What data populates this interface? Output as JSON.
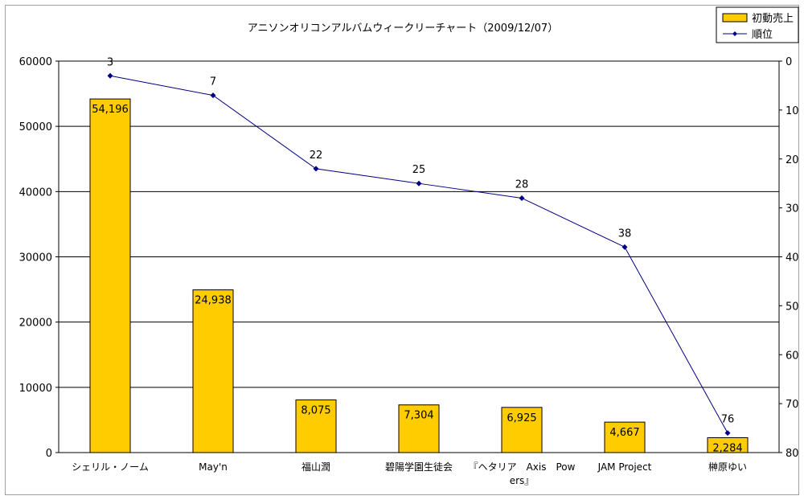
{
  "chart_data": {
    "type": "bar",
    "title": "アニソンオリコンアルバムウィークリーチャート（2009/12/07）",
    "categories": [
      "シェリル・ノーム",
      "May'n",
      "福山潤",
      "碧陽学園生徒会",
      "『ヘタリア Axis Powers』",
      "JAM Project",
      "榊原ゆい"
    ],
    "category_lines": [
      [
        "シェリル・ノーム"
      ],
      [
        "May'n"
      ],
      [
        "福山潤"
      ],
      [
        "碧陽学園生徒会"
      ],
      [
        "『ヘタリア　Axis　Pow",
        "ers』"
      ],
      [
        "JAM Project"
      ],
      [
        "榊原ゆい"
      ]
    ],
    "series": [
      {
        "name": "初動売上",
        "type": "bar",
        "axis": "left",
        "color": "#ffcc00",
        "values": [
          54196,
          24938,
          8075,
          7304,
          6925,
          4667,
          2284
        ],
        "labels": [
          "54,196",
          "24,938",
          "8,075",
          "7,304",
          "6,925",
          "4,667",
          "2,284"
        ]
      },
      {
        "name": "順位",
        "type": "line",
        "axis": "right",
        "color": "#000080",
        "values": [
          3,
          7,
          22,
          25,
          28,
          38,
          76
        ],
        "labels": [
          "3",
          "7",
          "22",
          "25",
          "28",
          "38",
          "76"
        ]
      }
    ],
    "y_left": {
      "min": 0,
      "max": 60000,
      "ticks": [
        "0",
        "10000",
        "20000",
        "30000",
        "40000",
        "50000",
        "60000"
      ]
    },
    "y_right": {
      "min": 0,
      "max": 80,
      "reversed": true,
      "ticks": [
        "0",
        "10",
        "20",
        "30",
        "40",
        "50",
        "60",
        "70",
        "80"
      ]
    },
    "grid": true,
    "legend_position": "top-right"
  }
}
